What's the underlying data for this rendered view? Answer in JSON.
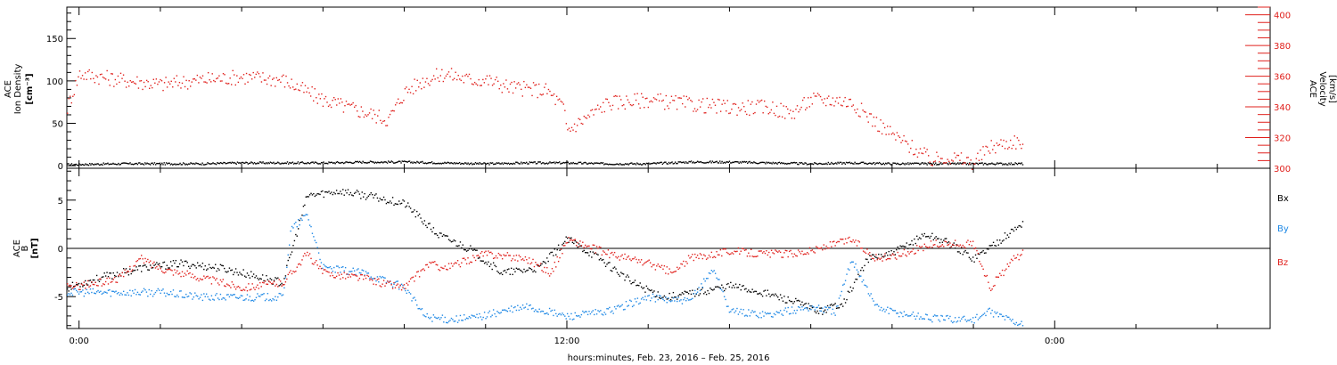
{
  "colors": {
    "black": "#000000",
    "red": "#e0201c",
    "blue": "#1e88e5"
  },
  "time_axis": {
    "xlabel": "hours:minutes, Feb. 23, 2016 – Feb. 25, 2016",
    "ticks": [
      {
        "hour": 0,
        "label": "0:00"
      },
      {
        "hour": 12,
        "label": "12:00"
      },
      {
        "hour": 24,
        "label": "0:00"
      }
    ]
  },
  "chart_data": [
    {
      "type": "scatter",
      "panel": "plasma",
      "ylabel_left": [
        "ACE",
        "Ion Density",
        "[cm⁻³]"
      ],
      "ylabel_right": [
        "ACE",
        "Velocity",
        "[km/s]"
      ],
      "xlim": [
        -0.3,
        29.3
      ],
      "ylim_left": [
        -3,
        187
      ],
      "ylim_right": [
        300,
        405
      ],
      "left_ticks": [
        0,
        50,
        100,
        150
      ],
      "right_ticks": [
        300,
        320,
        340,
        360,
        380,
        400
      ],
      "series": [
        {
          "axis": "left",
          "color": "black",
          "x": [
            -0.3,
            1,
            2,
            3,
            4,
            5,
            6,
            7,
            8,
            9,
            10,
            11,
            12,
            13,
            14,
            15,
            16,
            17,
            18,
            19,
            20,
            21,
            22,
            23,
            23.2
          ],
          "y": [
            2,
            3,
            3,
            3,
            4,
            4,
            4,
            5,
            5,
            4,
            3,
            4,
            4,
            3,
            3,
            5,
            5,
            4,
            3,
            4,
            3,
            3,
            3,
            3,
            3
          ]
        },
        {
          "axis": "right",
          "color": "red",
          "x": [
            -0.3,
            0,
            1,
            2,
            3,
            4,
            5,
            5.6,
            6,
            6.6,
            7,
            7.6,
            8,
            8.5,
            9,
            9.6,
            10,
            10.6,
            11,
            11.5,
            11.9,
            12,
            13,
            14,
            15,
            16,
            17,
            17.5,
            18,
            18.6,
            19,
            19.6,
            20,
            20.6,
            21,
            21.3,
            22,
            22.4,
            23,
            23.2
          ],
          "y": [
            340,
            362,
            358,
            355,
            358,
            360,
            358,
            350,
            345,
            340,
            337,
            332,
            350,
            358,
            362,
            358,
            358,
            353,
            352,
            351,
            340,
            325,
            343,
            345,
            342,
            340,
            340,
            336,
            345,
            345,
            343,
            330,
            322,
            312,
            305,
            308,
            304,
            314,
            318,
            316
          ]
        }
      ]
    },
    {
      "type": "scatter",
      "panel": "magnetic_field",
      "ylabel_left": [
        "ACE",
        "B",
        "[nT]"
      ],
      "xlim": [
        -0.3,
        29.3
      ],
      "ylim": [
        -8.3,
        8.3
      ],
      "left_ticks": [
        -5,
        0,
        5
      ],
      "series": [
        {
          "name": "Bx",
          "color": "black",
          "x": [
            -0.3,
            0.5,
            1.5,
            2.5,
            3.5,
            4.5,
            5,
            5.6,
            6.4,
            7.2,
            8,
            8.8,
            9.6,
            10.4,
            11.3,
            12,
            12.8,
            13.6,
            14.4,
            15.2,
            16,
            16.8,
            17.6,
            18.2,
            18.8,
            19.4,
            20,
            20.8,
            21.3,
            22,
            22.5,
            23,
            23.2
          ],
          "y": [
            -4,
            -3,
            -2,
            -1.5,
            -2,
            -3,
            -3.5,
            5.5,
            6,
            5.4,
            4.7,
            1.5,
            0,
            -2.5,
            -2,
            1,
            -1,
            -3.5,
            -5,
            -4.5,
            -3.8,
            -4.5,
            -5.5,
            -6.5,
            -5.5,
            -1,
            -0.5,
            1.5,
            0.8,
            -1,
            0.5,
            2,
            2.7
          ]
        },
        {
          "name": "By",
          "color": "blue",
          "x": [
            -0.3,
            1,
            2,
            3,
            4,
            5,
            5.2,
            5.6,
            6,
            7,
            8,
            8.5,
            9,
            9.6,
            10.4,
            11,
            12,
            13,
            14,
            15,
            15.6,
            16,
            17,
            18,
            18.6,
            19,
            19.6,
            20,
            21,
            22,
            22.4,
            23,
            23.2
          ],
          "y": [
            -4.5,
            -4.5,
            -4.5,
            -5,
            -5,
            -5,
            2,
            3.5,
            -2,
            -2.5,
            -4,
            -7,
            -7.3,
            -7.2,
            -6.5,
            -6,
            -7,
            -6.5,
            -5,
            -5.5,
            -2,
            -6.5,
            -6.8,
            -6,
            -6.5,
            -1,
            -6,
            -6.5,
            -7.2,
            -7.3,
            -6.5,
            -7.5,
            -7.8
          ]
        },
        {
          "name": "Bz",
          "color": "red",
          "x": [
            -0.3,
            0.5,
            1,
            1.5,
            2,
            3,
            4,
            5,
            5.6,
            6,
            7,
            7.4,
            8,
            8.6,
            9,
            10,
            11,
            11.6,
            12,
            13,
            14,
            14.6,
            15,
            16,
            16.8,
            17.4,
            18,
            19,
            19.6,
            20,
            21,
            22,
            22.4,
            23,
            23.2
          ],
          "y": [
            -4,
            -3.5,
            -3,
            -1,
            -2,
            -3,
            -4,
            -3.5,
            -0.5,
            -2.5,
            -3,
            -3.5,
            -4,
            -1.5,
            -2,
            -0.5,
            -1,
            -2.5,
            1,
            -0.5,
            -1.5,
            -2.5,
            -1,
            -0.2,
            -0.5,
            -0.5,
            -0.2,
            1,
            -1,
            -0.8,
            0.5,
            0.5,
            -4,
            -1,
            -0.5
          ]
        }
      ],
      "legend": [
        "Bx",
        "By",
        "Bz"
      ],
      "legend_placement": "right",
      "zero_line": true
    }
  ]
}
